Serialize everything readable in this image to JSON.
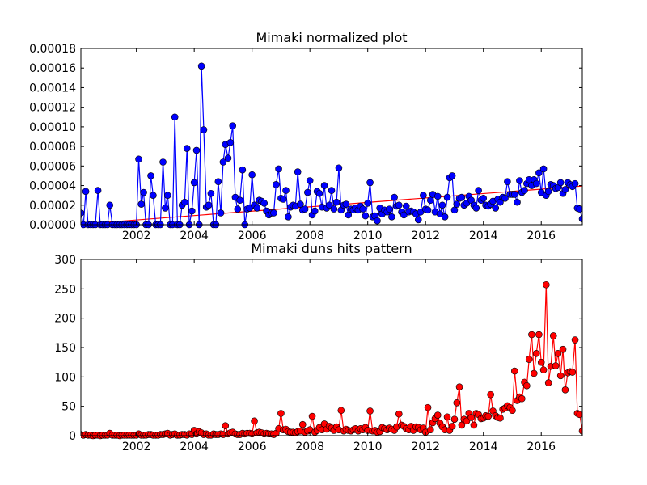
{
  "chart_data": [
    {
      "type": "line",
      "title": "Mimaki normalized plot",
      "x": [
        2000.08,
        2000.17,
        2000.25,
        2000.33,
        2000.42,
        2000.5,
        2000.58,
        2000.67,
        2000.75,
        2000.83,
        2000.92,
        2001.0,
        2001.08,
        2001.17,
        2001.25,
        2001.33,
        2001.42,
        2001.5,
        2001.58,
        2001.67,
        2001.75,
        2001.83,
        2001.92,
        2002.0,
        2002.08,
        2002.17,
        2002.25,
        2002.33,
        2002.42,
        2002.5,
        2002.58,
        2002.67,
        2002.75,
        2002.83,
        2002.92,
        2003.0,
        2003.08,
        2003.17,
        2003.25,
        2003.33,
        2003.42,
        2003.5,
        2003.58,
        2003.67,
        2003.75,
        2003.83,
        2003.92,
        2004.0,
        2004.08,
        2004.17,
        2004.25,
        2004.33,
        2004.42,
        2004.5,
        2004.58,
        2004.67,
        2004.75,
        2004.83,
        2004.92,
        2005.0,
        2005.08,
        2005.17,
        2005.25,
        2005.33,
        2005.42,
        2005.5,
        2005.58,
        2005.67,
        2005.75,
        2005.83,
        2005.92,
        2006.0,
        2006.08,
        2006.17,
        2006.25,
        2006.33,
        2006.42,
        2006.5,
        2006.58,
        2006.67,
        2006.75,
        2006.83,
        2006.92,
        2007.0,
        2007.08,
        2007.17,
        2007.25,
        2007.33,
        2007.42,
        2007.5,
        2007.58,
        2007.67,
        2007.75,
        2007.83,
        2007.92,
        2008.0,
        2008.08,
        2008.17,
        2008.25,
        2008.33,
        2008.42,
        2008.5,
        2008.58,
        2008.67,
        2008.75,
        2008.83,
        2008.92,
        2009.0,
        2009.08,
        2009.17,
        2009.25,
        2009.33,
        2009.42,
        2009.5,
        2009.58,
        2009.67,
        2009.75,
        2009.83,
        2009.92,
        2010.0,
        2010.08,
        2010.17,
        2010.25,
        2010.33,
        2010.42,
        2010.5,
        2010.58,
        2010.67,
        2010.75,
        2010.83,
        2010.92,
        2011.0,
        2011.08,
        2011.17,
        2011.25,
        2011.33,
        2011.42,
        2011.5,
        2011.58,
        2011.67,
        2011.75,
        2011.83,
        2011.92,
        2012.0,
        2012.08,
        2012.17,
        2012.25,
        2012.33,
        2012.42,
        2012.5,
        2012.58,
        2012.67,
        2012.75,
        2012.83,
        2012.92,
        2013.0,
        2013.08,
        2013.17,
        2013.25,
        2013.33,
        2013.42,
        2013.5,
        2013.58,
        2013.67,
        2013.75,
        2013.83,
        2013.92,
        2014.0,
        2014.08,
        2014.17,
        2014.25,
        2014.33,
        2014.42,
        2014.5,
        2014.58,
        2014.67,
        2014.75,
        2014.83,
        2014.92,
        2015.0,
        2015.08,
        2015.17,
        2015.25,
        2015.33,
        2015.42,
        2015.5,
        2015.58,
        2015.67,
        2015.75,
        2015.83,
        2015.92,
        2016.0,
        2016.08,
        2016.17,
        2016.25,
        2016.33,
        2016.42,
        2016.5,
        2016.58,
        2016.67,
        2016.75,
        2016.83,
        2016.92,
        2017.0,
        2017.08,
        2017.17,
        2017.25,
        2017.33,
        2017.42
      ],
      "series": [
        {
          "color": "#0000ff",
          "values": [
            1.2e-05,
            0,
            3.4e-05,
            0,
            0,
            0,
            0,
            3.5e-05,
            0,
            0,
            0,
            0,
            2e-05,
            0,
            0,
            0,
            0,
            0,
            0,
            0,
            0,
            0,
            0,
            0,
            6.7e-05,
            2.1e-05,
            3.3e-05,
            0,
            0,
            5e-05,
            3e-05,
            0,
            0,
            0,
            6.4e-05,
            1.7e-05,
            3e-05,
            0,
            0,
            0.00011,
            0,
            0,
            2e-05,
            2.3e-05,
            7.8e-05,
            0,
            1.4e-05,
            4.3e-05,
            7.6e-05,
            0,
            0.000162,
            9.7e-05,
            1.8e-05,
            2e-05,
            3.2e-05,
            0,
            0,
            4.4e-05,
            1.2e-05,
            6.4e-05,
            8.2e-05,
            6.8e-05,
            8.4e-05,
            0.000101,
            2.8e-05,
            1.6e-05,
            2.5e-05,
            5.6e-05,
            0,
            1.6e-05,
            1.7e-05,
            5.1e-05,
            2e-05,
            1.7e-05,
            2.5e-05,
            2.4e-05,
            2.2e-05,
            1.4e-05,
            1e-05,
            1.2e-05,
            1.2e-05,
            4.1e-05,
            5.7e-05,
            2.7e-05,
            2.6e-05,
            3.5e-05,
            8e-06,
            1.8e-05,
            2e-05,
            1.9e-05,
            5.4e-05,
            2.1e-05,
            1.5e-05,
            1.6e-05,
            3.3e-05,
            4.5e-05,
            1e-05,
            1.4e-05,
            3.4e-05,
            3.2e-05,
            1.8e-05,
            4e-05,
            1.7e-05,
            2e-05,
            3.5e-05,
            1.6e-05,
            2.3e-05,
            5.8e-05,
            1.5e-05,
            2e-05,
            2.1e-05,
            1e-05,
            1.6e-05,
            1.5e-05,
            1.7e-05,
            1.5e-05,
            1.9e-05,
            1.6e-05,
            9e-06,
            2.2e-05,
            4.3e-05,
            8e-06,
            9e-06,
            4e-06,
            1.7e-05,
            1.1e-05,
            1.5e-05,
            1.3e-05,
            1.6e-05,
            8e-06,
            2.8e-05,
            1.9e-05,
            2e-05,
            1.3e-05,
            1e-05,
            1.9e-05,
            1.3e-05,
            1.4e-05,
            1.3e-05,
            1.1e-05,
            5e-06,
            1.3e-05,
            3e-05,
            1.6e-05,
            1.5e-05,
            2.5e-05,
            3.1e-05,
            1.3e-05,
            2.9e-05,
            1.1e-05,
            2e-05,
            8e-06,
            2.8e-05,
            4.8e-05,
            5e-05,
            1.5e-05,
            2.1e-05,
            2.7e-05,
            2.8e-05,
            2e-05,
            2.2e-05,
            2.9e-05,
            2.5e-05,
            2e-05,
            1.7e-05,
            3.5e-05,
            2.5e-05,
            2.7e-05,
            2e-05,
            1.9e-05,
            2.1e-05,
            2.4e-05,
            1.7e-05,
            2.6e-05,
            2.3e-05,
            2.8e-05,
            2.7e-05,
            4.4e-05,
            3.1e-05,
            3.1e-05,
            3.1e-05,
            2.3e-05,
            4.5e-05,
            3.3e-05,
            3.5e-05,
            4.2e-05,
            4.6e-05,
            4e-05,
            4.6e-05,
            4.2e-05,
            5.3e-05,
            3.3e-05,
            5.7e-05,
            3e-05,
            3.4e-05,
            4.1e-05,
            4e-05,
            3.7e-05,
            3.8e-05,
            4.3e-05,
            3.2e-05,
            3.6e-05,
            4.3e-05,
            4.1e-05,
            3.9e-05,
            4.2e-05,
            1.7e-05,
            1.6e-05,
            6e-06
          ]
        }
      ],
      "trendline": {
        "color": "#ff0000",
        "x": [
          2000.08,
          2017.42
        ],
        "values": [
          5e-07,
          3.95e-05
        ]
      },
      "xlim": [
        2000.08,
        2017.42
      ],
      "xticks": [
        2002,
        2004,
        2006,
        2008,
        2010,
        2012,
        2014,
        2016
      ],
      "ylim": [
        0,
        0.00018
      ],
      "yticks": [
        {
          "value": 0,
          "label": "0.00000"
        },
        2e-05,
        4e-05,
        6e-05,
        8e-05,
        {
          "value": 0.0001,
          "label": "0.00010"
        },
        0.00012,
        0.00014,
        0.00016,
        0.00018
      ]
    },
    {
      "type": "line",
      "title": "Mimaki duns hits pattern",
      "x": [
        2000.08,
        2000.17,
        2000.25,
        2000.33,
        2000.42,
        2000.5,
        2000.58,
        2000.67,
        2000.75,
        2000.83,
        2000.92,
        2001.0,
        2001.08,
        2001.17,
        2001.25,
        2001.33,
        2001.42,
        2001.5,
        2001.58,
        2001.67,
        2001.75,
        2001.83,
        2001.92,
        2002.0,
        2002.08,
        2002.17,
        2002.25,
        2002.33,
        2002.42,
        2002.5,
        2002.58,
        2002.67,
        2002.75,
        2002.83,
        2002.92,
        2003.0,
        2003.08,
        2003.17,
        2003.25,
        2003.33,
        2003.42,
        2003.5,
        2003.58,
        2003.67,
        2003.75,
        2003.83,
        2003.92,
        2004.0,
        2004.08,
        2004.17,
        2004.25,
        2004.33,
        2004.42,
        2004.5,
        2004.58,
        2004.67,
        2004.75,
        2004.83,
        2004.92,
        2005.0,
        2005.08,
        2005.17,
        2005.25,
        2005.33,
        2005.42,
        2005.5,
        2005.58,
        2005.67,
        2005.75,
        2005.83,
        2005.92,
        2006.0,
        2006.08,
        2006.17,
        2006.25,
        2006.33,
        2006.42,
        2006.5,
        2006.58,
        2006.67,
        2006.75,
        2006.83,
        2006.92,
        2007.0,
        2007.08,
        2007.17,
        2007.25,
        2007.33,
        2007.42,
        2007.5,
        2007.58,
        2007.67,
        2007.75,
        2007.83,
        2007.92,
        2008.0,
        2008.08,
        2008.17,
        2008.25,
        2008.33,
        2008.42,
        2008.5,
        2008.58,
        2008.67,
        2008.75,
        2008.83,
        2008.92,
        2009.0,
        2009.08,
        2009.17,
        2009.25,
        2009.33,
        2009.42,
        2009.5,
        2009.58,
        2009.67,
        2009.75,
        2009.83,
        2009.92,
        2010.0,
        2010.08,
        2010.17,
        2010.25,
        2010.33,
        2010.42,
        2010.5,
        2010.58,
        2010.67,
        2010.75,
        2010.83,
        2010.92,
        2011.0,
        2011.08,
        2011.17,
        2011.25,
        2011.33,
        2011.42,
        2011.5,
        2011.58,
        2011.67,
        2011.75,
        2011.83,
        2011.92,
        2012.0,
        2012.08,
        2012.17,
        2012.25,
        2012.33,
        2012.42,
        2012.5,
        2012.58,
        2012.67,
        2012.75,
        2012.83,
        2012.92,
        2013.0,
        2013.08,
        2013.17,
        2013.25,
        2013.33,
        2013.42,
        2013.5,
        2013.58,
        2013.67,
        2013.75,
        2013.83,
        2013.92,
        2014.0,
        2014.08,
        2014.17,
        2014.25,
        2014.33,
        2014.42,
        2014.5,
        2014.58,
        2014.67,
        2014.75,
        2014.83,
        2014.92,
        2015.0,
        2015.08,
        2015.17,
        2015.25,
        2015.33,
        2015.42,
        2015.5,
        2015.58,
        2015.67,
        2015.75,
        2015.83,
        2015.92,
        2016.0,
        2016.08,
        2016.17,
        2016.25,
        2016.33,
        2016.42,
        2016.5,
        2016.58,
        2016.67,
        2016.75,
        2016.83,
        2016.92,
        2017.0,
        2017.08,
        2017.17,
        2017.25,
        2017.33,
        2017.42
      ],
      "series": [
        {
          "color": "#ff0000",
          "values": [
            2,
            1,
            2,
            1,
            1,
            0,
            1,
            1,
            0,
            1,
            1,
            1,
            4,
            1,
            1,
            1,
            0,
            1,
            1,
            1,
            1,
            1,
            1,
            1,
            3,
            1,
            1,
            1,
            2,
            2,
            1,
            1,
            1,
            2,
            2,
            3,
            4,
            1,
            2,
            3,
            1,
            1,
            2,
            2,
            1,
            3,
            2,
            9,
            3,
            7,
            5,
            2,
            3,
            1,
            1,
            3,
            2,
            2,
            3,
            2,
            17,
            3,
            5,
            6,
            3,
            2,
            2,
            4,
            3,
            4,
            4,
            3,
            25,
            5,
            6,
            5,
            3,
            4,
            3,
            3,
            2,
            4,
            12,
            38,
            10,
            11,
            7,
            6,
            6,
            5,
            7,
            8,
            19,
            6,
            8,
            10,
            33,
            6,
            9,
            14,
            10,
            20,
            11,
            16,
            13,
            9,
            15,
            10,
            43,
            8,
            11,
            9,
            8,
            10,
            12,
            8,
            12,
            10,
            14,
            9,
            42,
            8,
            9,
            6,
            7,
            14,
            12,
            10,
            13,
            11,
            9,
            15,
            37,
            18,
            16,
            12,
            10,
            16,
            9,
            15,
            14,
            10,
            13,
            6,
            48,
            10,
            22,
            29,
            35,
            21,
            15,
            10,
            32,
            9,
            16,
            28,
            56,
            83,
            18,
            28,
            25,
            38,
            31,
            18,
            38,
            36,
            29,
            30,
            34,
            33,
            70,
            42,
            34,
            31,
            30,
            45,
            47,
            51,
            48,
            43,
            110,
            60,
            66,
            63,
            91,
            85,
            130,
            172,
            106,
            140,
            172,
            125,
            112,
            257,
            90,
            118,
            170,
            119,
            140,
            102,
            147,
            78,
            107,
            109,
            108,
            163,
            38,
            36,
            8
          ]
        }
      ],
      "xlim": [
        2000.08,
        2017.42
      ],
      "xticks": [
        2002,
        2004,
        2006,
        2008,
        2010,
        2012,
        2014,
        2016
      ],
      "ylim": [
        0,
        300
      ],
      "yticks": [
        0,
        50,
        100,
        150,
        200,
        250,
        300
      ]
    }
  ]
}
